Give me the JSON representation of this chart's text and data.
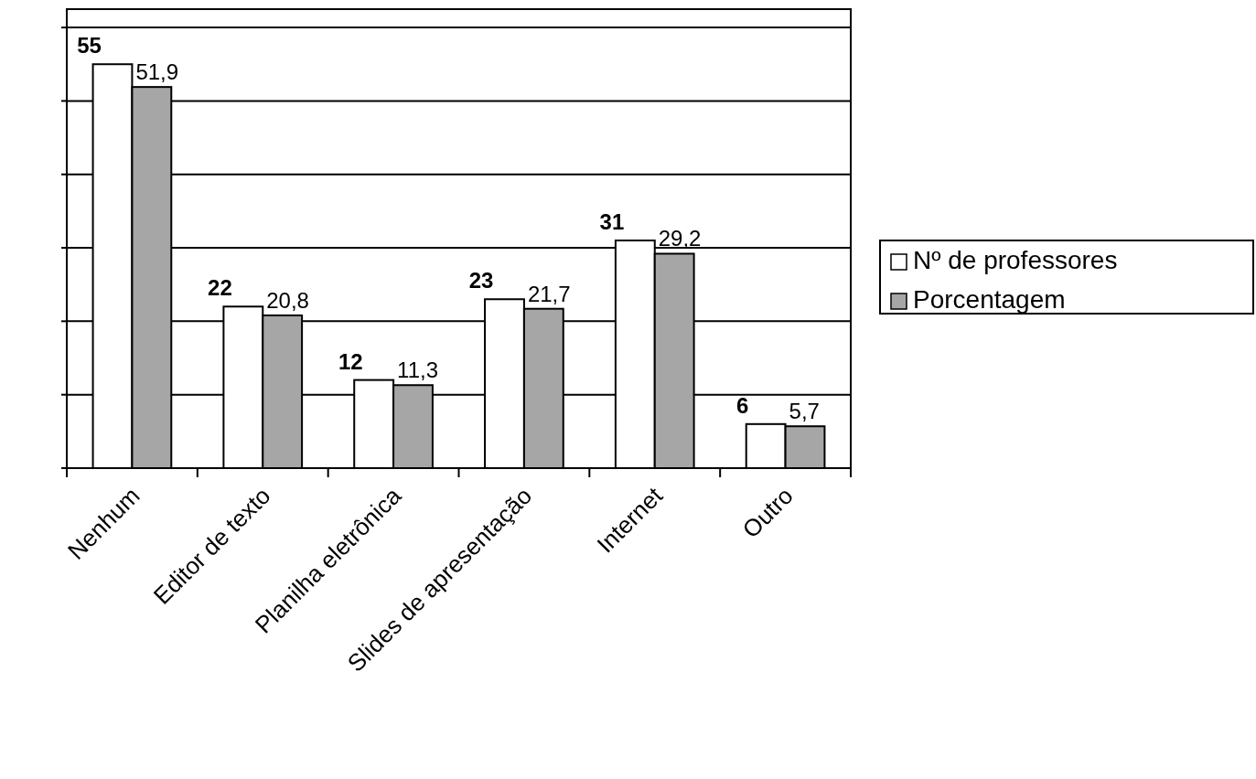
{
  "chart_data": {
    "type": "bar",
    "categories": [
      "Nenhum",
      "Editor de texto",
      "Planilha eletrônica",
      "Slides de apresentação",
      "Internet",
      "Outro"
    ],
    "series": [
      {
        "name": "Nº de professores",
        "color": "#ffffff",
        "values": [
          55,
          22,
          12,
          23,
          31,
          6
        ],
        "value_labels": [
          "55",
          "22",
          "12",
          "23",
          "31",
          "6"
        ]
      },
      {
        "name": "Porcentagem",
        "color": "#a6a6a6",
        "values": [
          51.9,
          20.8,
          11.3,
          21.7,
          29.2,
          5.7
        ],
        "value_labels": [
          "51,9",
          "20,8",
          "11,3",
          "21,7",
          "29,2",
          "5,7"
        ]
      }
    ],
    "ylim": [
      0,
      62.5
    ],
    "yticks": [
      {
        "value": 0,
        "label": null
      },
      {
        "value": 10,
        "label": null
      },
      {
        "value": 20,
        "label": null
      },
      {
        "value": 30,
        "label": null
      },
      {
        "value": 40,
        "label": null
      },
      {
        "value": 50,
        "label": null
      },
      {
        "value": 60,
        "label": null
      }
    ],
    "tick_labels": "x",
    "grid": "y",
    "legend": "right"
  }
}
